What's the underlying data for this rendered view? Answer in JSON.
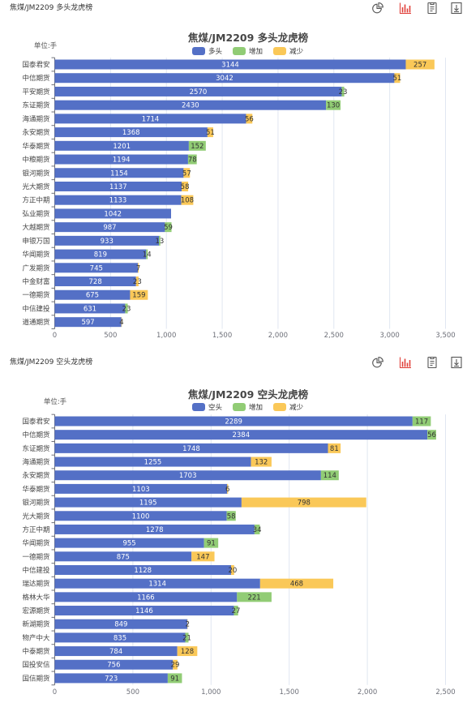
{
  "sections": [
    {
      "header_title": "焦煤/JM2209 多头龙虎榜"
    },
    {
      "header_title": "焦煤/JM2209 空头龙虎榜"
    }
  ],
  "toolbar": {
    "icons": [
      "pie-chart-icon",
      "bar-chart-icon",
      "document-icon",
      "download-icon"
    ],
    "active_icon": "bar-chart-icon",
    "active_color": "#e0403a",
    "icon_color": "#555555"
  },
  "chart_data": [
    {
      "type": "bar",
      "orientation": "horizontal",
      "stacked": true,
      "title": "焦煤/JM2209 多头龙虎榜",
      "unit_label": "单位:手",
      "legend_position": "top-center",
      "grid": true,
      "xlim": [
        0,
        3500
      ],
      "xticks": [
        0,
        500,
        1000,
        1500,
        2000,
        2500,
        3000,
        3500
      ],
      "xtick_labels": [
        "0",
        "500",
        "1,000",
        "1,500",
        "2,000",
        "2,500",
        "3,000",
        "3,500"
      ],
      "categories": [
        "国泰君安",
        "中信期货",
        "平安期货",
        "东证期货",
        "海通期货",
        "永安期货",
        "华泰期货",
        "中粮期货",
        "银河期货",
        "光大期货",
        "方正中期",
        "弘业期货",
        "大越期货",
        "申银万国",
        "华闻期货",
        "广发期货",
        "中金财富",
        "一德期货",
        "中信建投",
        "道通期货"
      ],
      "series": [
        {
          "name": "多头",
          "color": "#5470c6",
          "values": [
            3144,
            3042,
            2570,
            2430,
            1714,
            1368,
            1201,
            1194,
            1154,
            1137,
            1133,
            1042,
            987,
            933,
            819,
            745,
            728,
            675,
            631,
            597
          ]
        },
        {
          "name": "增加",
          "color": "#91cc75",
          "values": [
            null,
            null,
            23,
            130,
            null,
            null,
            152,
            78,
            null,
            null,
            null,
            null,
            59,
            13,
            14,
            null,
            null,
            null,
            23,
            null
          ]
        },
        {
          "name": "减少",
          "color": "#fac858",
          "values": [
            257,
            51,
            null,
            null,
            56,
            51,
            null,
            null,
            57,
            58,
            108,
            null,
            null,
            null,
            null,
            7,
            23,
            159,
            null,
            4
          ]
        }
      ]
    },
    {
      "type": "bar",
      "orientation": "horizontal",
      "stacked": true,
      "title": "焦煤/JM2209 空头龙虎榜",
      "unit_label": "单位:手",
      "legend_position": "top-center",
      "grid": true,
      "xlim": [
        0,
        2500
      ],
      "xticks": [
        0,
        500,
        1000,
        1500,
        2000,
        2500
      ],
      "xtick_labels": [
        "0",
        "500",
        "1,000",
        "1,500",
        "2,000",
        "2,500"
      ],
      "categories": [
        "国泰君安",
        "中信期货",
        "东证期货",
        "海通期货",
        "永安期货",
        "华泰期货",
        "银河期货",
        "光大期货",
        "方正中期",
        "华闻期货",
        "一德期货",
        "中信建投",
        "瑞达期货",
        "格林大华",
        "宏源期货",
        "新湖期货",
        "物产中大",
        "中泰期货",
        "国投安信",
        "国信期货"
      ],
      "series": [
        {
          "name": "空头",
          "color": "#5470c6",
          "values": [
            2289,
            2384,
            1748,
            1255,
            1703,
            1103,
            1195,
            1100,
            1278,
            955,
            875,
            1128,
            1314,
            1166,
            1146,
            849,
            835,
            784,
            756,
            723
          ]
        },
        {
          "name": "增加",
          "color": "#91cc75",
          "values": [
            117,
            56,
            null,
            null,
            114,
            null,
            null,
            58,
            34,
            91,
            null,
            null,
            null,
            221,
            27,
            null,
            21,
            null,
            null,
            91
          ]
        },
        {
          "name": "减少",
          "color": "#fac858",
          "values": [
            null,
            null,
            81,
            132,
            null,
            6,
            798,
            null,
            null,
            null,
            147,
            20,
            468,
            null,
            null,
            2,
            null,
            128,
            29,
            null
          ]
        }
      ]
    }
  ]
}
